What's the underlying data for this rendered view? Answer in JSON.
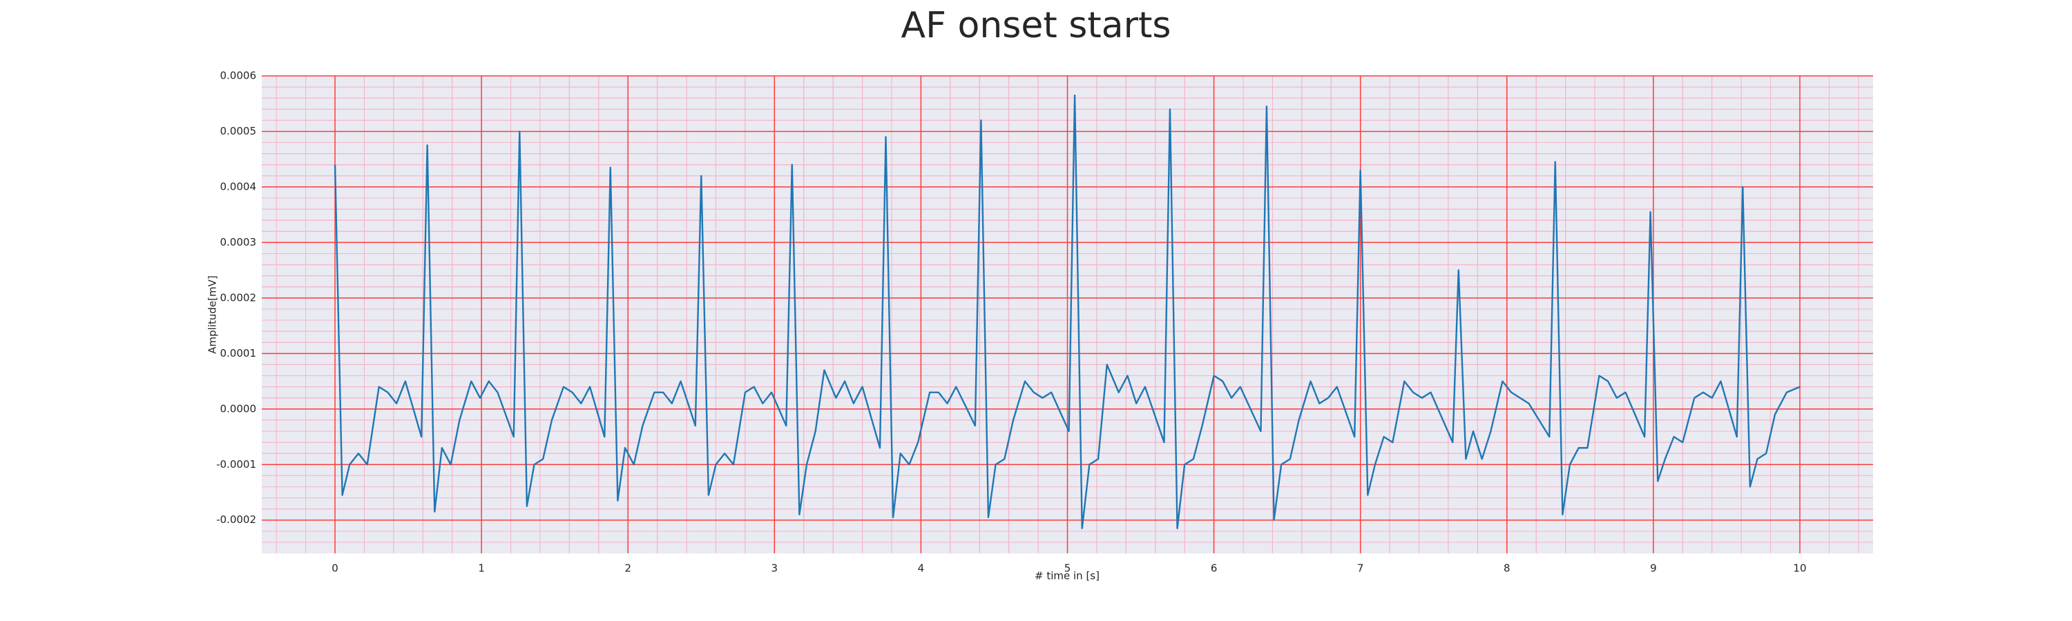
{
  "chart_data": {
    "type": "line",
    "title": "AF onset starts",
    "xlabel": "# time in [s]",
    "ylabel": "Amplitude[mV]",
    "color": "#1f77b4",
    "x": [
      0,
      0.05,
      0.1,
      0.16,
      0.22,
      0.3,
      0.36,
      0.42,
      0.48,
      0.59,
      0.63,
      0.68,
      0.73,
      0.79,
      0.85,
      0.93,
      0.99,
      1.05,
      1.11,
      1.22,
      1.26,
      1.31,
      1.36,
      1.42,
      1.48,
      1.56,
      1.62,
      1.68,
      1.74,
      1.84,
      1.88,
      1.93,
      1.98,
      2.04,
      2.1,
      2.18,
      2.24,
      2.3,
      2.36,
      2.46,
      2.5,
      2.55,
      2.6,
      2.66,
      2.72,
      2.8,
      2.86,
      2.92,
      2.98,
      3.08,
      3.12,
      3.17,
      3.22,
      3.28,
      3.34,
      3.42,
      3.48,
      3.54,
      3.6,
      3.72,
      3.76,
      3.81,
      3.86,
      3.92,
      3.98,
      4.06,
      4.12,
      4.18,
      4.24,
      4.37,
      4.41,
      4.46,
      4.51,
      4.57,
      4.63,
      4.71,
      4.77,
      4.83,
      4.89,
      5.01,
      5.05,
      5.1,
      5.15,
      5.21,
      5.27,
      5.35,
      5.41,
      5.47,
      5.53,
      5.66,
      5.7,
      5.75,
      5.8,
      5.86,
      5.92,
      6.0,
      6.06,
      6.12,
      6.18,
      6.32,
      6.36,
      6.41,
      6.46,
      6.52,
      6.58,
      6.66,
      6.72,
      6.78,
      6.84,
      6.96,
      7.0,
      7.05,
      7.1,
      7.16,
      7.22,
      7.3,
      7.36,
      7.42,
      7.48,
      7.63,
      7.67,
      7.72,
      7.77,
      7.83,
      7.89,
      7.97,
      8.03,
      8.09,
      8.15,
      8.29,
      8.33,
      8.38,
      8.43,
      8.49,
      8.55,
      8.63,
      8.69,
      8.75,
      8.81,
      8.94,
      8.98,
      9.03,
      9.08,
      9.14,
      9.2,
      9.28,
      9.34,
      9.4,
      9.46,
      9.57,
      9.61,
      9.66,
      9.71,
      9.77,
      9.83,
      9.91,
      10.0
    ],
    "values": [
      0.00044,
      -0.000155,
      -0.0001,
      -8e-05,
      -0.0001,
      4e-05,
      3e-05,
      1e-05,
      5e-05,
      -5e-05,
      0.000475,
      -0.000185,
      -7e-05,
      -0.0001,
      -2e-05,
      5e-05,
      2e-05,
      5e-05,
      3e-05,
      -5e-05,
      0.0005,
      -0.000175,
      -0.0001,
      -9e-05,
      -2e-05,
      4e-05,
      3e-05,
      1e-05,
      4e-05,
      -5e-05,
      0.000435,
      -0.000165,
      -7e-05,
      -0.0001,
      -3e-05,
      3e-05,
      3e-05,
      1e-05,
      5e-05,
      -3e-05,
      0.00042,
      -0.000155,
      -0.0001,
      -8e-05,
      -0.0001,
      3e-05,
      4e-05,
      1e-05,
      3e-05,
      -3e-05,
      0.00044,
      -0.00019,
      -0.0001,
      -4e-05,
      7e-05,
      2e-05,
      5e-05,
      1e-05,
      4e-05,
      -7e-05,
      0.00049,
      -0.000195,
      -8e-05,
      -0.0001,
      -6e-05,
      3e-05,
      3e-05,
      1e-05,
      4e-05,
      -3e-05,
      0.00052,
      -0.000195,
      -0.0001,
      -9e-05,
      -2e-05,
      5e-05,
      3e-05,
      2e-05,
      3e-05,
      -4e-05,
      0.000565,
      -0.000215,
      -0.0001,
      -9e-05,
      8e-05,
      3e-05,
      6e-05,
      1e-05,
      4e-05,
      -6e-05,
      0.00054,
      -0.000215,
      -0.0001,
      -9e-05,
      -3e-05,
      6e-05,
      5e-05,
      2e-05,
      4e-05,
      -4e-05,
      0.000545,
      -0.0002,
      -0.0001,
      -9e-05,
      -2e-05,
      5e-05,
      1e-05,
      2e-05,
      4e-05,
      -5e-05,
      0.00043,
      -0.000155,
      -0.0001,
      -5e-05,
      -6e-05,
      5e-05,
      3e-05,
      2e-05,
      3e-05,
      -6e-05,
      0.00025,
      -9e-05,
      -4e-05,
      -9e-05,
      -4e-05,
      5e-05,
      3e-05,
      2e-05,
      1e-05,
      -5e-05,
      0.000445,
      -0.00019,
      -0.0001,
      -7e-05,
      -7e-05,
      6e-05,
      5e-05,
      2e-05,
      3e-05,
      -5e-05,
      0.000355,
      -0.00013,
      -9e-05,
      -5e-05,
      -6e-05,
      2e-05,
      3e-05,
      2e-05,
      5e-05,
      -5e-05,
      0.0004,
      -0.00014,
      -9e-05,
      -8e-05,
      -1e-05,
      3e-05,
      4e-05
    ],
    "xlim": [
      -0.5,
      10.5
    ],
    "xticks": [
      0,
      1,
      2,
      3,
      4,
      5,
      6,
      7,
      8,
      9,
      10
    ],
    "ylim": [
      -0.00026,
      0.0006
    ],
    "yticks": [
      -0.0002,
      -0.0001,
      {
        "value": 0,
        "label": "0.0000"
      },
      0.0001,
      0.0002,
      0.0003,
      0.0004,
      0.0005,
      0.0006
    ],
    "grid": true
  }
}
